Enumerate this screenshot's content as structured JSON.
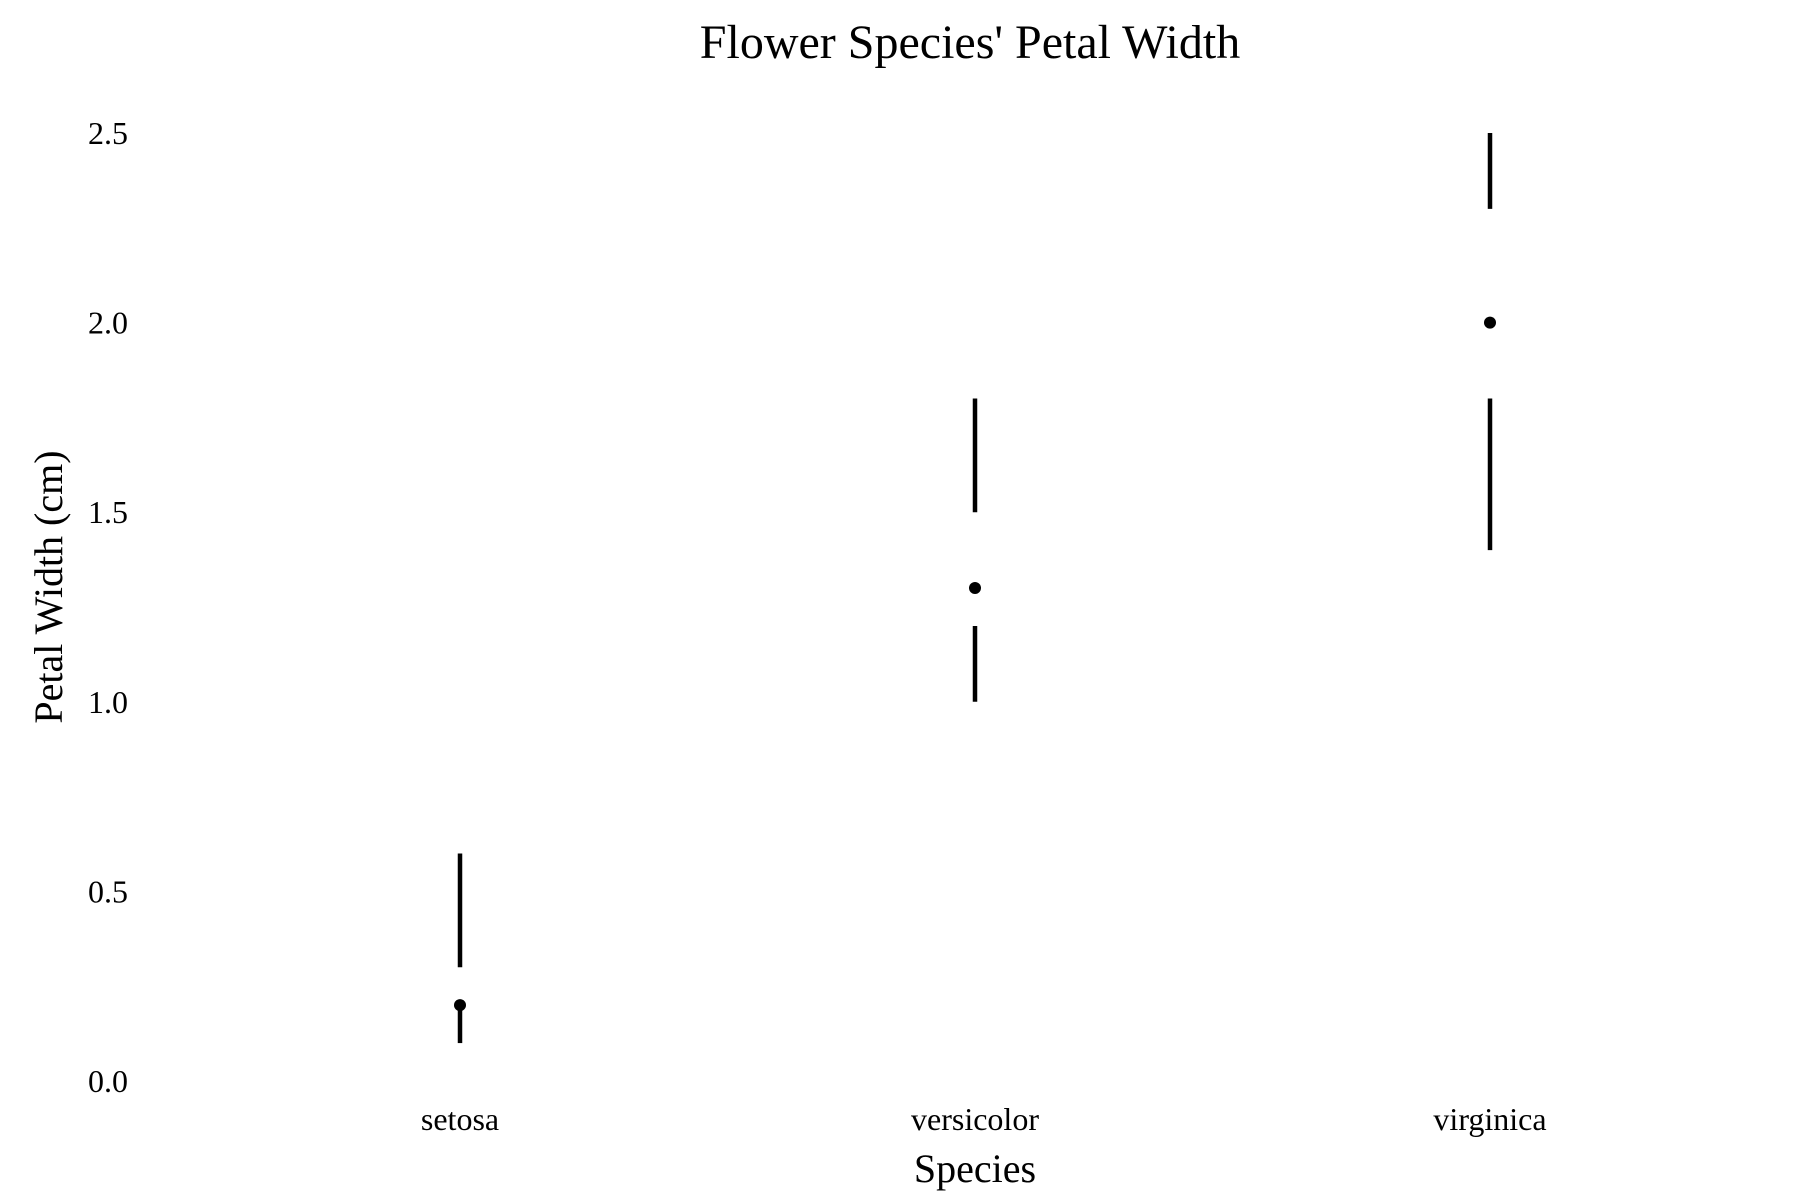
{
  "chart_data": {
    "type": "box",
    "style": "tufte-boxplot",
    "title": "Flower Species' Petal Width",
    "xlabel": "Species",
    "ylabel": "Petal Width (cm)",
    "ylim": [
      0,
      2.5
    ],
    "yticks": [
      "0.0",
      "0.5",
      "1.0",
      "1.5",
      "2.0",
      "2.5"
    ],
    "grid": false,
    "categories": [
      "setosa",
      "versicolor",
      "virginica"
    ],
    "series": [
      {
        "values": [
          {
            "category": "setosa",
            "min": 0.1,
            "q1": 0.2,
            "median": 0.2,
            "q3": 0.3,
            "max": 0.6
          },
          {
            "category": "versicolor",
            "min": 1.0,
            "q1": 1.2,
            "median": 1.3,
            "q3": 1.5,
            "max": 1.8
          },
          {
            "category": "virginica",
            "min": 1.4,
            "q1": 1.8,
            "median": 2.0,
            "q3": 2.3,
            "max": 2.5
          }
        ]
      }
    ],
    "colors": {
      "marks": "#000000",
      "background": "#ffffff"
    }
  }
}
